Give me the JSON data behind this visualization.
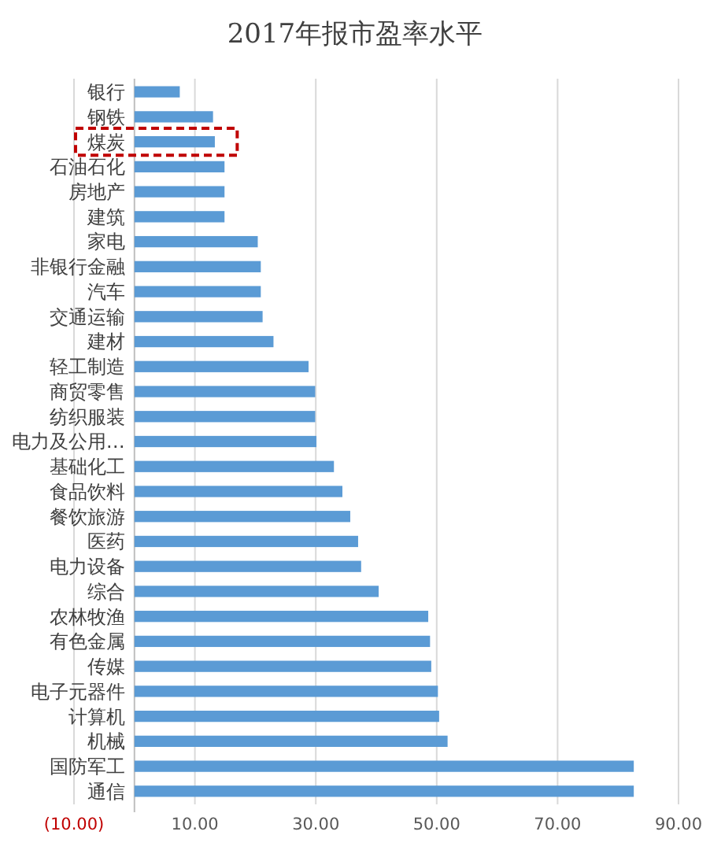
{
  "chart_data": {
    "type": "bar",
    "orientation": "horizontal",
    "title": "2017年报市盈率水平",
    "categories": [
      "银行",
      "钢铁",
      "煤炭",
      "石油石化",
      "房地产",
      "建筑",
      "家电",
      "非银行金融",
      "汽车",
      "交通运输",
      "建材",
      "轻工制造",
      "商贸零售",
      "纺织服装",
      "电力及公用…",
      "基础化工",
      "食品饮料",
      "餐饮旅游",
      "医药",
      "电力设备",
      "综合",
      "农林牧渔",
      "有色金属",
      "传媒",
      "电子元器件",
      "计算机",
      "机械",
      "国防军工",
      "通信"
    ],
    "values": [
      7.5,
      13.0,
      13.3,
      14.9,
      14.9,
      14.9,
      20.4,
      20.9,
      20.9,
      21.2,
      23.0,
      28.8,
      29.9,
      29.9,
      30.1,
      33.0,
      34.4,
      35.7,
      37.0,
      37.5,
      40.4,
      48.6,
      48.9,
      49.1,
      50.2,
      50.4,
      51.8,
      82.6,
      82.6
    ],
    "color": "#5b9bd5",
    "xlim": [
      -10,
      90
    ],
    "xticks": [
      {
        "value": -10,
        "label": "(10.00)"
      },
      {
        "value": 10,
        "label": "10.00"
      },
      {
        "value": 30,
        "label": "30.00"
      },
      {
        "value": 50,
        "label": "50.00"
      },
      {
        "value": 70,
        "label": "70.00"
      },
      {
        "value": 90,
        "label": "90.00"
      }
    ],
    "grid": "x"
  }
}
